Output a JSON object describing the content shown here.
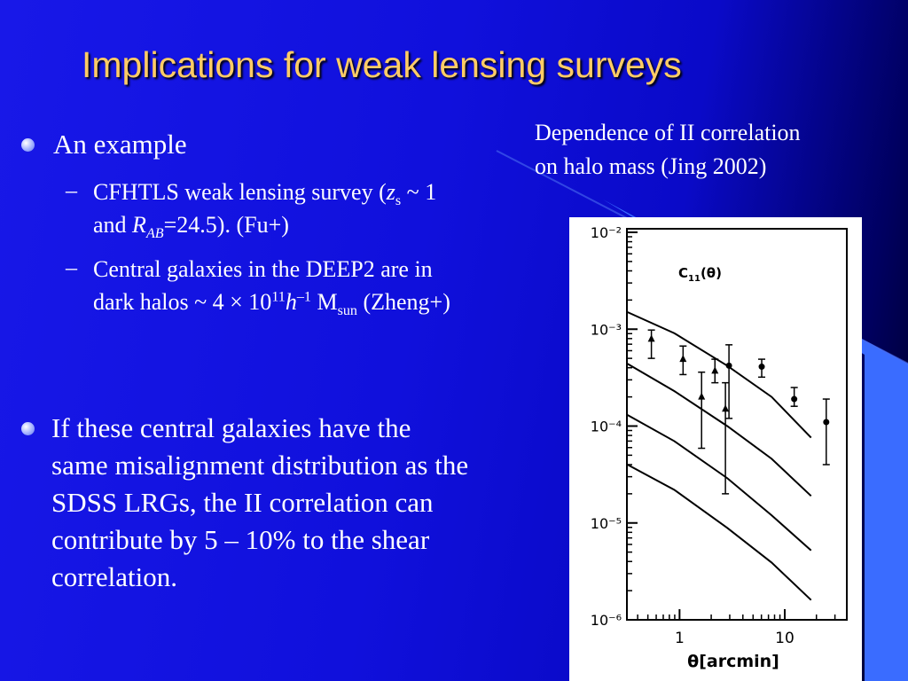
{
  "title": "Implications for weak lensing surveys",
  "bullets": [
    {
      "text": "An example",
      "sub": [
        [
          "CFHTLS weak lensing survey (",
          "z",
          "s",
          " ~ 1 and ",
          "R",
          "AB",
          "=24.5). (Fu+)"
        ],
        [
          "Central galaxies in the DEEP2 are in dark halos ~ 4 × 10",
          "11",
          "h",
          "–1",
          " M",
          "sun",
          " (Zheng+)"
        ]
      ]
    },
    {
      "text": "If these central galaxies have the same misalignment distribution as the SDSS LRGs, the II correlation can contribute by 5 – 10% to the shear correlation."
    }
  ],
  "caption": [
    "Dependence of II correlation",
    "on halo mass (Jing 2002)"
  ],
  "figure": {
    "type": "line",
    "label": [
      "C",
      "11",
      "(θ)"
    ],
    "xlabel": "θ[arcmin]",
    "log_x": true,
    "log_y": true,
    "color": "#000000",
    "xlim": [
      0.316,
      38.9
    ],
    "ylim": [
      1e-06,
      0.01
    ],
    "xticks": [
      1,
      10
    ],
    "yticks": [
      {
        "value": 0.01,
        "label": "10⁻²"
      },
      {
        "value": 0.001,
        "label": "10⁻³"
      },
      {
        "value": 0.0001,
        "label": "10⁻⁴"
      },
      {
        "value": 1e-05,
        "label": "10⁻⁵"
      },
      {
        "value": 1e-06,
        "label": "10⁻⁶"
      }
    ],
    "x": [
      0.32,
      0.89,
      2.84,
      7.5,
      17.8
    ],
    "series": [
      {
        "values": [
          0.0015,
          0.00091,
          0.00042,
          0.0002,
          7.6e-05
        ]
      },
      {
        "values": [
          0.00044,
          0.00023,
          0.0001,
          4.6e-05,
          1.9e-05
        ]
      },
      {
        "values": [
          0.00013,
          7e-05,
          2.9e-05,
          1.2e-05,
          5.2e-06
        ]
      },
      {
        "values": [
          4e-05,
          2.2e-05,
          8.9e-06,
          3.9e-06,
          1.6e-06
        ]
      }
    ],
    "points": [
      {
        "marker": "triangle",
        "x": 0.54,
        "y": 0.00079,
        "low": 0.0005,
        "high": 0.00098
      },
      {
        "marker": "triangle",
        "x": 1.08,
        "y": 0.00049,
        "low": 0.00034,
        "high": 0.00067
      },
      {
        "marker": "triangle",
        "x": 1.62,
        "y": 0.0002,
        "low": 5.9e-05,
        "high": 0.00036
      },
      {
        "marker": "triangle",
        "x": 2.17,
        "y": 0.00037,
        "low": 0.00028,
        "high": 0.00049
      },
      {
        "marker": "triangle",
        "x": 2.73,
        "y": 0.00015,
        "low": 2e-05,
        "high": 0.00028
      },
      {
        "marker": "circle",
        "x": 2.95,
        "y": 0.00042,
        "low": 0.00012,
        "high": 0.00069
      },
      {
        "marker": "circle",
        "x": 6.04,
        "y": 0.00041,
        "low": 0.00032,
        "high": 0.00049
      },
      {
        "marker": "circle",
        "x": 12.3,
        "y": 0.00019,
        "low": 0.00016,
        "high": 0.00025
      },
      {
        "marker": "circle",
        "x": 24.8,
        "y": 0.00011,
        "low": 4e-05,
        "high": 0.00019
      }
    ]
  }
}
